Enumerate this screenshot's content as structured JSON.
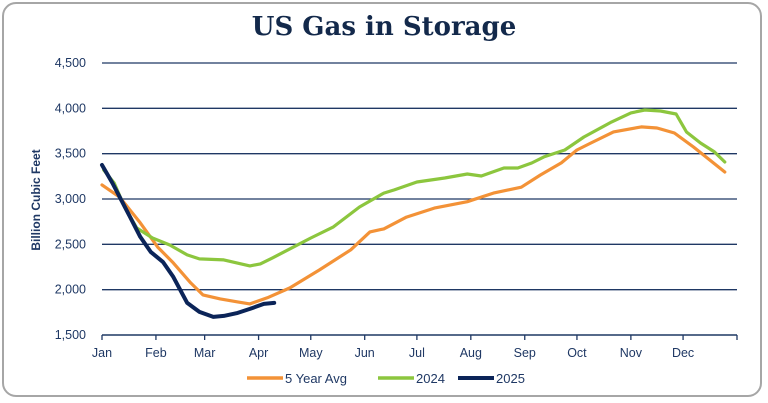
{
  "chart_data": {
    "type": "line",
    "title": "US Gas in Storage",
    "xlabel": "",
    "ylabel": "Billion Cubic Feet",
    "x_ticks": [
      "Jan",
      "Feb",
      "Mar",
      "Apr",
      "May",
      "Jun",
      "Jul",
      "Aug",
      "Sep",
      "Oct",
      "Nov",
      "Dec"
    ],
    "y_ticks": [
      "1,500",
      "2,000",
      "2,500",
      "3,000",
      "3,500",
      "4,000",
      "4,500"
    ],
    "ylim": [
      1500,
      4500
    ],
    "grid": "horizontal",
    "legend": "bottom",
    "series": [
      {
        "name": "5 Year Avg",
        "color": "#f39237",
        "points": [
          [
            "01-01",
            3155
          ],
          [
            "01-11",
            3023
          ],
          [
            "01-23",
            2736
          ],
          [
            "02-02",
            2470
          ],
          [
            "02-11",
            2295
          ],
          [
            "02-21",
            2075
          ],
          [
            "02-28",
            1942
          ],
          [
            "03-10",
            1898
          ],
          [
            "03-20",
            1865
          ],
          [
            "03-27",
            1843
          ],
          [
            "04-06",
            1910
          ],
          [
            "04-19",
            2020
          ],
          [
            "05-06",
            2218
          ],
          [
            "05-24",
            2440
          ],
          [
            "06-04",
            2637
          ],
          [
            "06-12",
            2670
          ],
          [
            "06-25",
            2800
          ],
          [
            "07-11",
            2900
          ],
          [
            "07-30",
            2970
          ],
          [
            "08-14",
            3065
          ],
          [
            "08-30",
            3130
          ],
          [
            "09-10",
            3265
          ],
          [
            "09-22",
            3398
          ],
          [
            "10-01",
            3540
          ],
          [
            "10-09",
            3618
          ],
          [
            "10-22",
            3740
          ],
          [
            "11-07",
            3795
          ],
          [
            "11-16",
            3783
          ],
          [
            "11-26",
            3728
          ],
          [
            "12-07",
            3574
          ],
          [
            "12-25",
            3298
          ]
        ]
      },
      {
        "name": "2024",
        "color": "#8cc63e",
        "points": [
          [
            "01-02",
            3320
          ],
          [
            "01-08",
            3177
          ],
          [
            "01-14",
            2912
          ],
          [
            "01-21",
            2680
          ],
          [
            "01-30",
            2570
          ],
          [
            "02-09",
            2493
          ],
          [
            "02-19",
            2383
          ],
          [
            "02-26",
            2339
          ],
          [
            "03-12",
            2328
          ],
          [
            "03-27",
            2262
          ],
          [
            "04-02",
            2284
          ],
          [
            "04-09",
            2350
          ],
          [
            "04-21",
            2470
          ],
          [
            "05-01",
            2570
          ],
          [
            "05-14",
            2692
          ],
          [
            "05-29",
            2912
          ],
          [
            "06-12",
            3065
          ],
          [
            "06-18",
            3100
          ],
          [
            "07-01",
            3188
          ],
          [
            "07-17",
            3232
          ],
          [
            "07-30",
            3276
          ],
          [
            "08-07",
            3254
          ],
          [
            "08-20",
            3342
          ],
          [
            "08-28",
            3342
          ],
          [
            "09-05",
            3397
          ],
          [
            "09-12",
            3464
          ],
          [
            "09-24",
            3540
          ],
          [
            "10-05",
            3684
          ],
          [
            "10-21",
            3850
          ],
          [
            "11-01",
            3950
          ],
          [
            "11-09",
            3982
          ],
          [
            "11-18",
            3971
          ],
          [
            "11-27",
            3938
          ],
          [
            "12-03",
            3739
          ],
          [
            "12-11",
            3618
          ],
          [
            "12-19",
            3519
          ],
          [
            "12-25",
            3408
          ]
        ]
      },
      {
        "name": "2025",
        "color": "#0b2458",
        "points": [
          [
            "01-01",
            3375
          ],
          [
            "01-07",
            3177
          ],
          [
            "01-15",
            2880
          ],
          [
            "01-23",
            2582
          ],
          [
            "01-29",
            2416
          ],
          [
            "02-05",
            2306
          ],
          [
            "02-11",
            2141
          ],
          [
            "02-19",
            1854
          ],
          [
            "02-26",
            1755
          ],
          [
            "03-06",
            1700
          ],
          [
            "03-12",
            1711
          ],
          [
            "03-20",
            1744
          ],
          [
            "03-27",
            1788
          ],
          [
            "04-04",
            1843
          ],
          [
            "04-10",
            1854
          ]
        ]
      }
    ]
  }
}
